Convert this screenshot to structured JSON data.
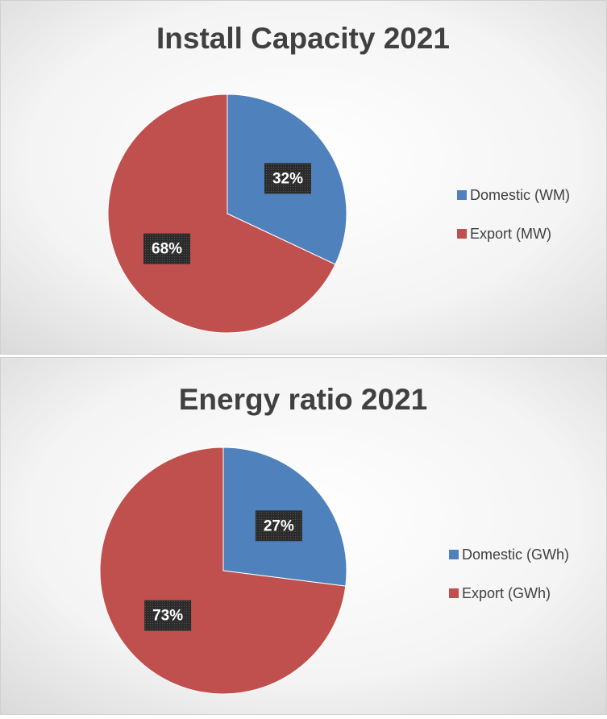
{
  "chart_data": [
    {
      "type": "pie",
      "title": "Install Capacity 2021",
      "categories": [
        "Domestic (WM)",
        "Export (MW)"
      ],
      "values": [
        32,
        68
      ],
      "value_labels": [
        "32%",
        "68%"
      ],
      "colors": [
        "#4f81bd",
        "#c0504d"
      ],
      "legend": "right"
    },
    {
      "type": "pie",
      "title": "Energy ratio 2021",
      "categories": [
        "Domestic (GWh)",
        "Export (GWh)"
      ],
      "values": [
        27,
        73
      ],
      "value_labels": [
        "27%",
        "73%"
      ],
      "colors": [
        "#4f81bd",
        "#c0504d"
      ],
      "legend": "right"
    }
  ]
}
